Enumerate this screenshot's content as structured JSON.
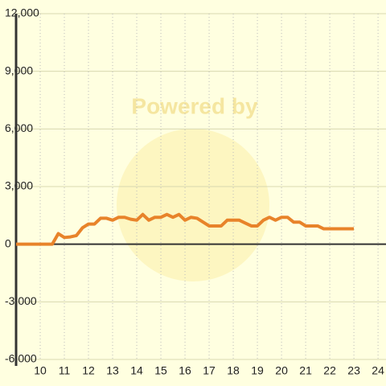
{
  "chart_data": {
    "type": "line",
    "watermark": "Powered by",
    "x": [
      9,
      10.5,
      10.75,
      11,
      11.25,
      11.5,
      11.75,
      12,
      12.25,
      12.5,
      12.75,
      13,
      13.25,
      13.5,
      13.75,
      14,
      14.25,
      14.5,
      14.75,
      15,
      15.25,
      15.5,
      15.75,
      16,
      16.25,
      16.5,
      16.75,
      17,
      17.25,
      17.5,
      17.75,
      18,
      18.25,
      18.5,
      18.75,
      19,
      19.25,
      19.5,
      19.75,
      20,
      20.25,
      20.5,
      20.75,
      21,
      21.25,
      21.5,
      21.75,
      22,
      22.25,
      22.5,
      22.75,
      23
    ],
    "series": [
      {
        "color": "#e8832a",
        "values": [
          0,
          0,
          550,
          350,
          380,
          450,
          850,
          1050,
          1050,
          1350,
          1350,
          1250,
          1400,
          1400,
          1300,
          1250,
          1550,
          1250,
          1400,
          1400,
          1550,
          1400,
          1550,
          1250,
          1400,
          1350,
          1150,
          950,
          950,
          950,
          1250,
          1250,
          1250,
          1100,
          950,
          950,
          1250,
          1400,
          1250,
          1400,
          1400,
          1150,
          1150,
          950,
          950,
          950,
          800,
          800,
          800,
          800,
          800,
          800
        ]
      }
    ],
    "xlim": [
      9,
      24.33
    ],
    "xticks": [
      10,
      11,
      12,
      13,
      14,
      15,
      16,
      17,
      18,
      19,
      20,
      21,
      22,
      23,
      24
    ],
    "ylim": [
      -6000,
      12000
    ],
    "yticks": [
      {
        "value": -6000,
        "label": "-6,000"
      },
      {
        "value": -3000,
        "label": "-3,000"
      },
      0,
      {
        "value": 3000,
        "label": "3,000"
      },
      {
        "value": 6000,
        "label": "6,000"
      },
      {
        "value": 9000,
        "label": "9,000"
      },
      {
        "value": 12000,
        "label": "12,000"
      }
    ],
    "grid": true
  }
}
